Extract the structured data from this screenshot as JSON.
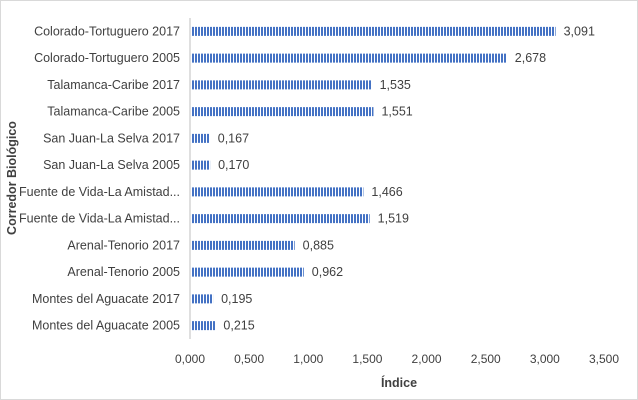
{
  "chart_data": {
    "type": "bar",
    "orientation": "horizontal",
    "categories": [
      "Colorado-Tortuguero  2017",
      "Colorado-Tortuguero  2005",
      "Talamanca-Caribe 2017",
      "Talamanca-Caribe 2005",
      "San Juan-La Selva 2017",
      "San Juan-La Selva 2005",
      "Fuente de Vida-La Amistad...",
      "Fuente de Vida-La Amistad...",
      "Arenal-Tenorio 2017",
      "Arenal-Tenorio 2005",
      "Montes del Aguacate 2017",
      "Montes del Aguacate 2005"
    ],
    "values": [
      3.091,
      2.678,
      1.535,
      1.551,
      0.167,
      0.17,
      1.466,
      1.519,
      0.885,
      0.962,
      0.195,
      0.215
    ],
    "data_labels": [
      "3,091",
      "2,678",
      "1,535",
      "1,551",
      "0,167",
      "0,170",
      "1,466",
      "1,519",
      "0,885",
      "0,962",
      "0,195",
      "0,215"
    ],
    "xticks": [
      "0,000",
      "0,500",
      "1,000",
      "1,500",
      "2,000",
      "2,500",
      "3,000",
      "3,500"
    ],
    "xlim": [
      0,
      3.5
    ],
    "xlabel": "Índice",
    "ylabel": "Corredor Biológico",
    "title": "",
    "grid": false,
    "legend": "none",
    "bar_color": "#4472c4",
    "bar_pattern": "vertical-stripes"
  }
}
